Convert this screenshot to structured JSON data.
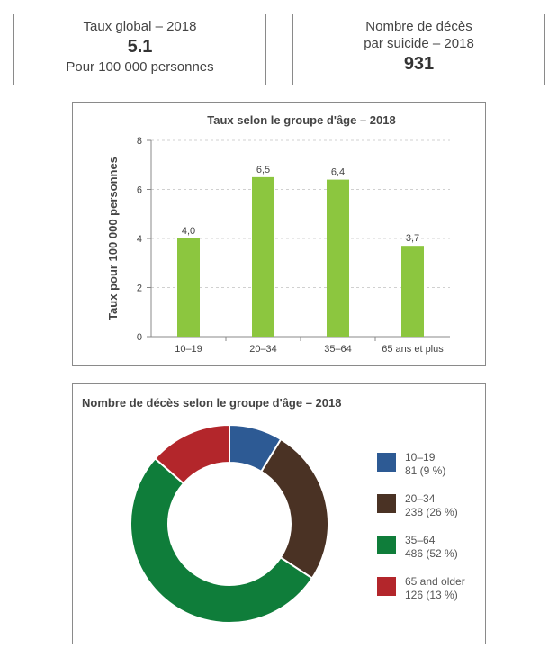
{
  "stats": {
    "rate": {
      "label": "Taux global – 2018",
      "value": "5.1",
      "sub": "Pour 100 000 personnes"
    },
    "deaths": {
      "label_line1": "Nombre de décès",
      "label_line2": "par suicide – 2018",
      "value": "931"
    }
  },
  "chart_data": [
    {
      "type": "bar",
      "title": "Taux selon le groupe d'âge – 2018",
      "ylabel": "Taux pour 100 000 personnes",
      "xlabel": "",
      "categories": [
        "10–19",
        "20–34",
        "35–64",
        "65 ans et plus"
      ],
      "values": [
        4.0,
        6.5,
        6.4,
        3.7
      ],
      "data_labels": [
        "4,0",
        "6,5",
        "6,4",
        "3,7"
      ],
      "ylim": [
        0,
        8
      ],
      "yticks": [
        0,
        2,
        4,
        6,
        8
      ],
      "grid": true,
      "bar_color": "#8cc63f"
    },
    {
      "type": "pie",
      "title": "Nombre de décès selon le groupe d'âge – 2018",
      "legend_position": "right",
      "slices": [
        {
          "label": "10–19",
          "value": 81,
          "detail": "81 (9 %)",
          "color": "#2d5a94"
        },
        {
          "label": "20–34",
          "value": 238,
          "detail": "238 (26 %)",
          "color": "#4a3224"
        },
        {
          "label": "35–64",
          "value": 486,
          "detail": "486 (52 %)",
          "color": "#0f7d3a"
        },
        {
          "label": "65 and older",
          "value": 126,
          "detail": "126 (13 %)",
          "color": "#b3262b"
        }
      ]
    }
  ]
}
